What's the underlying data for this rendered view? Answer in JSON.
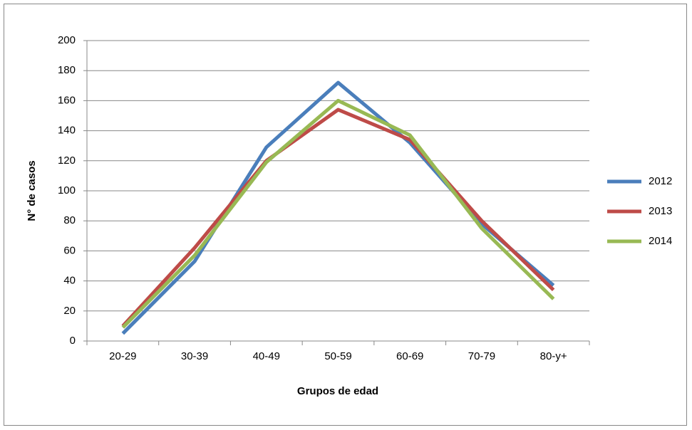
{
  "chart_data": {
    "type": "line",
    "x_label": "Grupos de edad",
    "y_label": "N° de casos",
    "categories": [
      "20-29",
      "30-39",
      "40-49",
      "50-59",
      "60-69",
      "70-79",
      "80-y+"
    ],
    "series": [
      {
        "name": "2012",
        "color": "#4a7ebb",
        "values": [
          5,
          53,
          129,
          172,
          132,
          78,
          37
        ]
      },
      {
        "name": "2013",
        "color": "#be4b48",
        "values": [
          10,
          62,
          120,
          154,
          134,
          80,
          34
        ]
      },
      {
        "name": "2014",
        "color": "#98b954",
        "values": [
          9,
          57,
          119,
          160,
          137,
          75,
          28
        ]
      }
    ],
    "ylim": [
      0,
      200
    ],
    "yticks": [
      0,
      20,
      40,
      60,
      80,
      100,
      120,
      140,
      160,
      180,
      200
    ],
    "grid": true,
    "legend": "right"
  }
}
